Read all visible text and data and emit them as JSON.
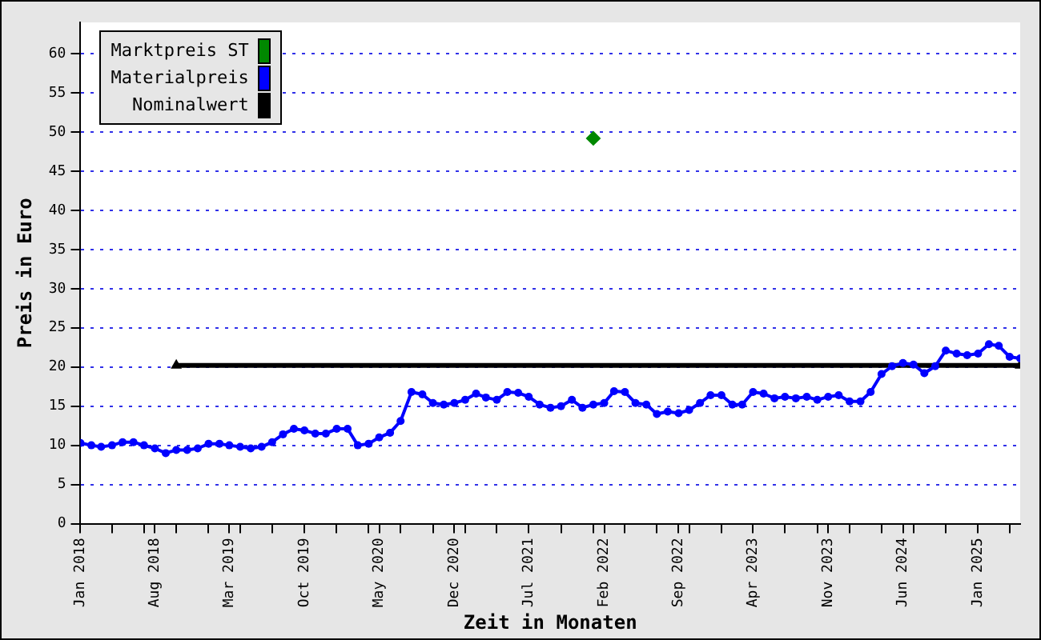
{
  "chart_data": {
    "type": "line",
    "xlabel": "Zeit in Monaten",
    "ylabel": "Preis in Euro",
    "xlim": [
      "2018-01",
      "2025-05"
    ],
    "xticks": [
      {
        "value": "2018-01",
        "label": "Jan 2018"
      },
      {
        "value": "2018-04",
        "label": null
      },
      {
        "value": "2018-07",
        "label": null
      },
      {
        "value": "2018-08",
        "label": "Aug 2018"
      },
      {
        "value": "2018-10",
        "label": null
      },
      {
        "value": "2019-01",
        "label": null
      },
      {
        "value": "2019-03",
        "label": "Mar 2019"
      },
      {
        "value": "2019-04",
        "label": null
      },
      {
        "value": "2019-07",
        "label": null
      },
      {
        "value": "2019-10",
        "label": "Oct 2019"
      },
      {
        "value": "2020-01",
        "label": null
      },
      {
        "value": "2020-04",
        "label": null
      },
      {
        "value": "2020-05",
        "label": "May 2020"
      },
      {
        "value": "2020-07",
        "label": null
      },
      {
        "value": "2020-10",
        "label": null
      },
      {
        "value": "2020-12",
        "label": "Dec 2020"
      },
      {
        "value": "2021-01",
        "label": null
      },
      {
        "value": "2021-04",
        "label": null
      },
      {
        "value": "2021-07",
        "label": "Jul 2021"
      },
      {
        "value": "2021-10",
        "label": null
      },
      {
        "value": "2022-01",
        "label": null
      },
      {
        "value": "2022-02",
        "label": "Feb 2022"
      },
      {
        "value": "2022-04",
        "label": null
      },
      {
        "value": "2022-07",
        "label": null
      },
      {
        "value": "2022-09",
        "label": "Sep 2022"
      },
      {
        "value": "2022-10",
        "label": null
      },
      {
        "value": "2023-01",
        "label": null
      },
      {
        "value": "2023-04",
        "label": "Apr 2023"
      },
      {
        "value": "2023-07",
        "label": null
      },
      {
        "value": "2023-10",
        "label": null
      },
      {
        "value": "2023-11",
        "label": "Nov 2023"
      },
      {
        "value": "2024-01",
        "label": null
      },
      {
        "value": "2024-04",
        "label": null
      },
      {
        "value": "2024-06",
        "label": "Jun 2024"
      },
      {
        "value": "2024-07",
        "label": null
      },
      {
        "value": "2024-10",
        "label": null
      },
      {
        "value": "2025-01",
        "label": "Jan 2025"
      },
      {
        "value": "2025-04",
        "label": null
      }
    ],
    "ylim": [
      0,
      64
    ],
    "yticks": [
      0,
      5,
      10,
      15,
      20,
      25,
      30,
      35,
      40,
      45,
      50,
      55,
      60
    ],
    "grid": "y",
    "legend": "top left",
    "series": [
      {
        "name": "Marktpreis ST",
        "color": "#008800",
        "type": "scatter",
        "marker": "diamond",
        "x": [
          "2022-01"
        ],
        "values": [
          49.2
        ]
      },
      {
        "name": "Materialpreis",
        "color": "#0000ff",
        "marker": "circle",
        "x": [
          "2018-01",
          "2018-02",
          "2018-03",
          "2018-04",
          "2018-05",
          "2018-06",
          "2018-07",
          "2018-08",
          "2018-09",
          "2018-10",
          "2018-11",
          "2018-12",
          "2019-01",
          "2019-02",
          "2019-03",
          "2019-04",
          "2019-05",
          "2019-06",
          "2019-07",
          "2019-08",
          "2019-09",
          "2019-10",
          "2019-11",
          "2019-12",
          "2020-01",
          "2020-02",
          "2020-03",
          "2020-04",
          "2020-05",
          "2020-06",
          "2020-07",
          "2020-08",
          "2020-09",
          "2020-10",
          "2020-11",
          "2020-12",
          "2021-01",
          "2021-02",
          "2021-03",
          "2021-04",
          "2021-05",
          "2021-06",
          "2021-07",
          "2021-08",
          "2021-09",
          "2021-10",
          "2021-11",
          "2021-12",
          "2022-01",
          "2022-02",
          "2022-03",
          "2022-04",
          "2022-05",
          "2022-06",
          "2022-07",
          "2022-08",
          "2022-09",
          "2022-10",
          "2022-11",
          "2022-12",
          "2023-01",
          "2023-02",
          "2023-03",
          "2023-04",
          "2023-05",
          "2023-06",
          "2023-07",
          "2023-08",
          "2023-09",
          "2023-10",
          "2023-11",
          "2023-12",
          "2024-01",
          "2024-02",
          "2024-03",
          "2024-04",
          "2024-05",
          "2024-06",
          "2024-07",
          "2024-08",
          "2024-09",
          "2024-10",
          "2024-11",
          "2024-12",
          "2025-01",
          "2025-02",
          "2025-03",
          "2025-04",
          "2025-05"
        ],
        "values": [
          10.3,
          10.0,
          9.8,
          10.0,
          10.4,
          10.4,
          10.0,
          9.6,
          9.0,
          9.4,
          9.4,
          9.6,
          10.2,
          10.2,
          10.0,
          9.8,
          9.6,
          9.8,
          10.4,
          11.4,
          12.1,
          11.9,
          11.5,
          11.5,
          12.1,
          12.1,
          10.0,
          10.2,
          11.0,
          11.6,
          13.1,
          16.8,
          16.5,
          15.4,
          15.2,
          15.4,
          15.8,
          16.6,
          16.1,
          15.8,
          16.8,
          16.7,
          16.2,
          15.2,
          14.8,
          15.0,
          15.8,
          14.8,
          15.2,
          15.4,
          16.9,
          16.8,
          15.4,
          15.2,
          14.0,
          14.3,
          14.1,
          14.5,
          15.4,
          16.4,
          16.4,
          15.2,
          15.2,
          16.8,
          16.6,
          16.0,
          16.2,
          16.0,
          16.2,
          15.8,
          16.2,
          16.4,
          15.6,
          15.6,
          16.8,
          19.1,
          20.1,
          20.5,
          20.3,
          19.2,
          20.1,
          22.1,
          21.7,
          21.5,
          21.7,
          22.9,
          22.7,
          21.3,
          21.1
        ]
      },
      {
        "name": "Nominalwert",
        "color": "#000000",
        "marker": "triangle",
        "x": [
          "2018-10",
          "2025-05"
        ],
        "values": [
          20.2,
          20.2
        ]
      }
    ]
  }
}
